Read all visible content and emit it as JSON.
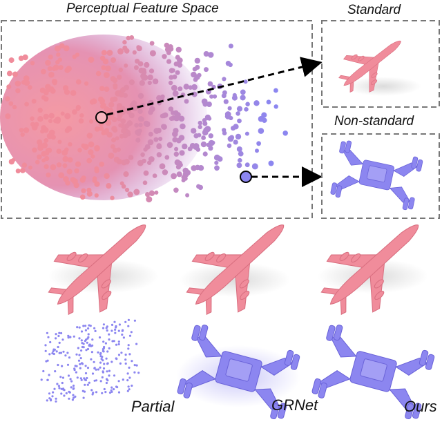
{
  "labels": {
    "feature_space": "Perceptual Feature Space",
    "standard": "Standard",
    "non_standard": "Non-standard",
    "partial": "Partial",
    "grnet": "GRNet",
    "ours": "Ours"
  },
  "colors": {
    "standard_pink": "#f08c9b",
    "non_standard_blue": "#8c86f0",
    "mid_purple": "#c08ad0",
    "frame_gray": "#777777"
  },
  "icons": [
    "airplane-pointcloud-icon",
    "robot-pointcloud-icon"
  ]
}
